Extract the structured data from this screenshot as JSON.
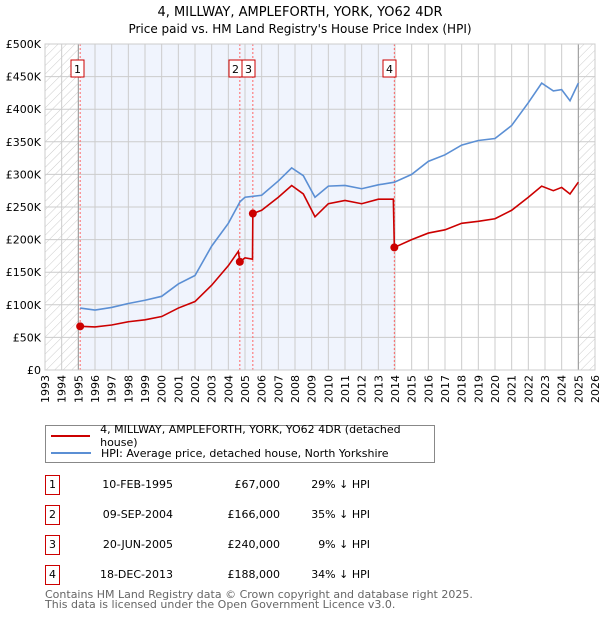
{
  "chart_data": {
    "type": "line",
    "title": "4, MILLWAY, AMPLEFORTH, YORK, YO62 4DR",
    "subtitle": "Price paid vs. HM Land Registry's House Price Index (HPI)",
    "xlim": [
      1993,
      2026
    ],
    "ylim": [
      0,
      500000
    ],
    "x_ticks": [
      "1993",
      "1994",
      "1995",
      "1996",
      "1997",
      "1998",
      "1999",
      "2000",
      "2001",
      "2002",
      "2003",
      "2004",
      "2005",
      "2006",
      "2007",
      "2008",
      "2009",
      "2010",
      "2011",
      "2012",
      "2013",
      "2014",
      "2015",
      "2016",
      "2017",
      "2018",
      "2019",
      "2020",
      "2021",
      "2022",
      "2023",
      "2024",
      "2025",
      "2026"
    ],
    "y_ticks": [
      {
        "v": 0,
        "label": "£0"
      },
      {
        "v": 50000,
        "label": "£50K"
      },
      {
        "v": 100000,
        "label": "£100K"
      },
      {
        "v": 150000,
        "label": "£150K"
      },
      {
        "v": 200000,
        "label": "£200K"
      },
      {
        "v": 250000,
        "label": "£250K"
      },
      {
        "v": 300000,
        "label": "£300K"
      },
      {
        "v": 350000,
        "label": "£350K"
      },
      {
        "v": 400000,
        "label": "£400K"
      },
      {
        "v": 450000,
        "label": "£450K"
      },
      {
        "v": 500000,
        "label": "£500K"
      }
    ],
    "grid": true,
    "series": [
      {
        "name": "4, MILLWAY, AMPLEFORTH, YORK, YO62 4DR (detached house)",
        "color": "#cc0000",
        "x": [
          1995.11,
          1996,
          1997,
          1998,
          1999,
          2000,
          2001,
          2002,
          2003,
          2004,
          2004.6,
          2004.69,
          2005,
          2005.45,
          2005.47,
          2006,
          2007,
          2007.8,
          2008.5,
          2009.2,
          2010,
          2011,
          2012,
          2013,
          2013.9,
          2013.96,
          2015,
          2016,
          2017,
          2018,
          2019,
          2020,
          2021,
          2022,
          2022.8,
          2023.5,
          2024,
          2024.5,
          2025
        ],
        "y": [
          67000,
          66000,
          69000,
          74000,
          77000,
          82000,
          95000,
          105000,
          130000,
          160000,
          182000,
          166000,
          172000,
          170000,
          240000,
          245000,
          265000,
          283000,
          270000,
          235000,
          255000,
          260000,
          255000,
          262000,
          262000,
          188000,
          200000,
          210000,
          215000,
          225000,
          228000,
          232000,
          245000,
          265000,
          282000,
          275000,
          280000,
          270000,
          288000
        ]
      },
      {
        "name": "HPI: Average price, detached house, North Yorkshire",
        "color": "#5b8fd4",
        "x": [
          1995.11,
          1996,
          1997,
          1998,
          1999,
          2000,
          2001,
          2002,
          2003,
          2004,
          2004.7,
          2005,
          2006,
          2007,
          2007.8,
          2008.5,
          2009.2,
          2010,
          2011,
          2012,
          2013,
          2013.96,
          2015,
          2016,
          2017,
          2018,
          2019,
          2020,
          2021,
          2022,
          2022.8,
          2023.5,
          2024,
          2024.5,
          2025
        ],
        "y": [
          95000,
          92000,
          96000,
          102000,
          107000,
          113000,
          132000,
          145000,
          190000,
          225000,
          258000,
          265000,
          268000,
          290000,
          310000,
          298000,
          265000,
          282000,
          283000,
          278000,
          284000,
          288000,
          300000,
          320000,
          330000,
          345000,
          352000,
          355000,
          375000,
          410000,
          440000,
          428000,
          430000,
          413000,
          440000
        ]
      }
    ],
    "sales": [
      {
        "id": "1",
        "x": 1995.11,
        "y": 67000
      },
      {
        "id": "2",
        "x": 2004.69,
        "y": 166000
      },
      {
        "id": "3",
        "x": 2005.47,
        "y": 240000
      },
      {
        "id": "4",
        "x": 2013.96,
        "y": 188000
      }
    ],
    "shaded_range": [
      1995.11,
      2013.96
    ],
    "hatched_ranges": [
      [
        1993,
        1995
      ],
      [
        2025,
        2026
      ]
    ],
    "legend_placement": "below"
  },
  "title": "4, MILLWAY, AMPLEFORTH, YORK, YO62 4DR",
  "subtitle": "Price paid vs. HM Land Registry's House Price Index (HPI)",
  "legend": [
    "4, MILLWAY, AMPLEFORTH, YORK, YO62 4DR (detached house)",
    "HPI: Average price, detached house, North Yorkshire"
  ],
  "table": [
    {
      "num": "1",
      "date": "10-FEB-1995",
      "price": "£67,000",
      "hpi": "29% ↓ HPI"
    },
    {
      "num": "2",
      "date": "09-SEP-2004",
      "price": "£166,000",
      "hpi": "35% ↓ HPI"
    },
    {
      "num": "3",
      "date": "20-JUN-2005",
      "price": "£240,000",
      "hpi": "9% ↓ HPI"
    },
    {
      "num": "4",
      "date": "18-DEC-2013",
      "price": "£188,000",
      "hpi": "34% ↓ HPI"
    }
  ],
  "footer": [
    "Contains HM Land Registry data © Crown copyright and database right 2025.",
    "This data is licensed under the Open Government Licence v3.0."
  ]
}
